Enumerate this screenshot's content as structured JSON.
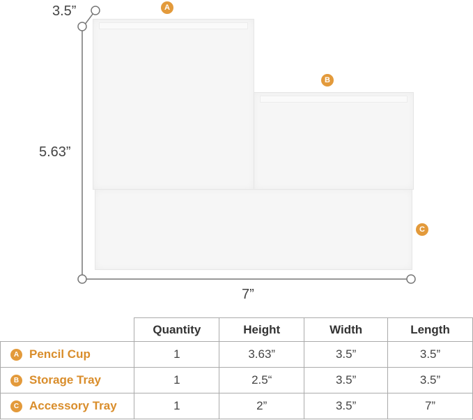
{
  "dimensions": {
    "depth": "3.5”",
    "height": "5.63”",
    "length": "7”"
  },
  "labels": [
    "A",
    "B",
    "C"
  ],
  "accent_color": "#e39a3b",
  "table": {
    "headers": [
      "Quantity",
      "Height",
      "Width",
      "Length"
    ],
    "rows": [
      {
        "badge": "A",
        "name": "Pencil Cup",
        "quantity": "1",
        "height": "3.63”",
        "width": "3.5”",
        "length": "3.5”"
      },
      {
        "badge": "B",
        "name": "Storage Tray",
        "quantity": "1",
        "height": "2.5“",
        "width": "3.5”",
        "length": "3.5”"
      },
      {
        "badge": "C",
        "name": "Accessory Tray",
        "quantity": "1",
        "height": "2”",
        "width": "3.5”",
        "length": "7”"
      }
    ]
  }
}
